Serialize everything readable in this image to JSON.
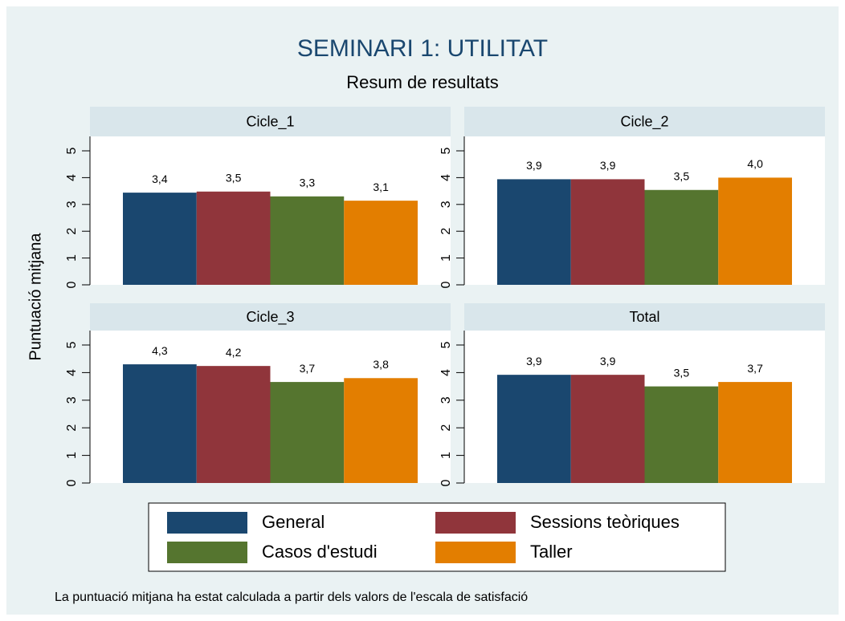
{
  "title": "SEMINARI 1: UTILITAT",
  "subtitle": "Resum de resultats",
  "ylabel": "Puntuació mitjana",
  "note": "La puntuació mitjana ha estat calculada a partir dels valors de l'escala de satisfació",
  "legend": [
    {
      "name": "General",
      "color": "#1a476f"
    },
    {
      "name": "Sessions teòriques",
      "color": "#90353b"
    },
    {
      "name": "Casos d'estudi",
      "color": "#55752f"
    },
    {
      "name": "Taller",
      "color": "#e37e00"
    }
  ],
  "chart_data": [
    {
      "type": "bar",
      "title": "Cicle_1",
      "values": [
        3.44,
        3.48,
        3.3,
        3.14
      ],
      "value_labels": [
        "3,4",
        "3,5",
        "3,3",
        "3,1"
      ],
      "ylim": [
        0,
        5
      ],
      "yticks": [
        0,
        1,
        2,
        3,
        4,
        5
      ]
    },
    {
      "type": "bar",
      "title": "Cicle_2",
      "values": [
        3.94,
        3.94,
        3.54,
        4.0
      ],
      "value_labels": [
        "3,9",
        "3,9",
        "3,5",
        "4,0"
      ],
      "ylim": [
        0,
        5
      ],
      "yticks": [
        0,
        1,
        2,
        3,
        4,
        5
      ]
    },
    {
      "type": "bar",
      "title": "Cicle_3",
      "values": [
        4.3,
        4.24,
        3.66,
        3.8
      ],
      "value_labels": [
        "4,3",
        "4,2",
        "3,7",
        "3,8"
      ],
      "ylim": [
        0,
        5
      ],
      "yticks": [
        0,
        1,
        2,
        3,
        4,
        5
      ]
    },
    {
      "type": "bar",
      "title": "Total",
      "values": [
        3.92,
        3.92,
        3.5,
        3.66
      ],
      "value_labels": [
        "3,9",
        "3,9",
        "3,5",
        "3,7"
      ],
      "ylim": [
        0,
        5
      ],
      "yticks": [
        0,
        1,
        2,
        3,
        4,
        5
      ]
    }
  ]
}
